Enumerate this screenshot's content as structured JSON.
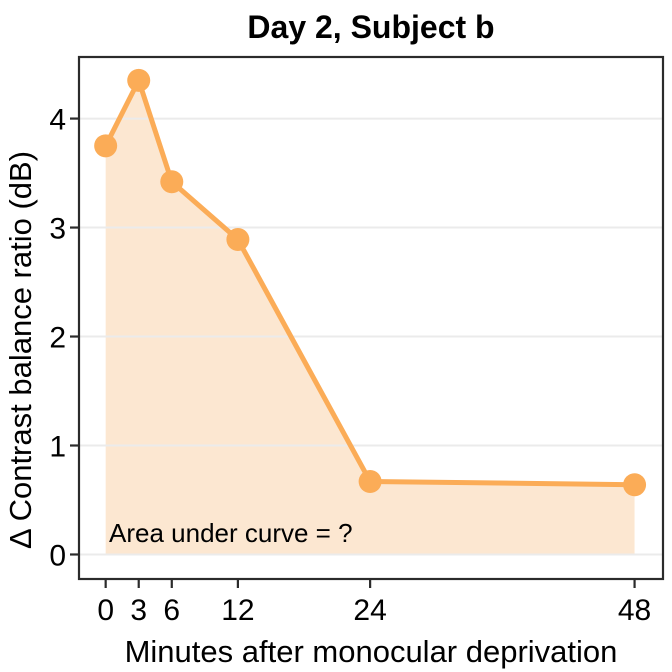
{
  "chart_data": {
    "type": "line",
    "title": "Day 2, Subject b",
    "xlabel": "Minutes after monocular deprivation",
    "ylabel": "Δ Contrast balance ratio (dB)",
    "annotation": "Area under curve = ?",
    "x": [
      0,
      3,
      6,
      12,
      24,
      48
    ],
    "y": [
      3.75,
      4.35,
      3.42,
      2.89,
      0.67,
      0.64
    ],
    "xticks": [
      0,
      3,
      6,
      12,
      24,
      48
    ],
    "yticks": [
      0,
      1,
      2,
      3,
      4
    ],
    "xlim": [
      -2.42,
      50.58
    ],
    "ylim": [
      -0.225,
      4.565
    ],
    "area_fill_baseline": 0,
    "grid": "horizontal-major-only",
    "legend": "none",
    "colors": {
      "line": "#FBAC57",
      "point": "#FBAC57",
      "area_fill": "#FCE7D1",
      "gridline": "#EBEBEB",
      "panel_border": "#2B2B2B",
      "tick": "#2B2B2B",
      "text": "#000000",
      "background": "#FFFFFF"
    }
  }
}
